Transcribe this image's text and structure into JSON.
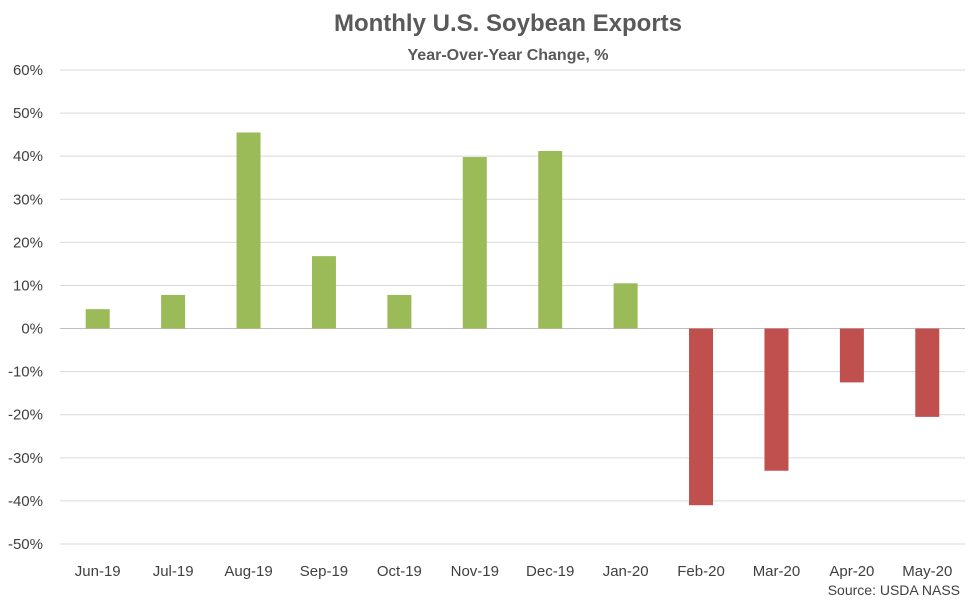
{
  "chart_data": {
    "type": "bar",
    "title": "Monthly U.S. Soybean Exports",
    "subtitle": "Year-Over-Year Change, %",
    "categories": [
      "Jun-19",
      "Jul-19",
      "Aug-19",
      "Sep-19",
      "Oct-19",
      "Nov-19",
      "Dec-19",
      "Jan-20",
      "Feb-20",
      "Mar-20",
      "Apr-20",
      "May-20"
    ],
    "values": [
      4.5,
      7.8,
      45.5,
      16.8,
      7.8,
      39.8,
      41.2,
      10.5,
      -41.0,
      -33.0,
      -12.5,
      -20.5
    ],
    "ylim": [
      -50,
      60
    ],
    "ytick_step": 10,
    "ytick_suffix": "%",
    "grid": true,
    "colors": {
      "positive": "#9BBB59",
      "negative": "#C0504D",
      "grid": "#D9D9D9",
      "axis": "#BFBFBF",
      "text": "#404040",
      "title": "#595959"
    },
    "source": "Source: USDA NASS"
  }
}
